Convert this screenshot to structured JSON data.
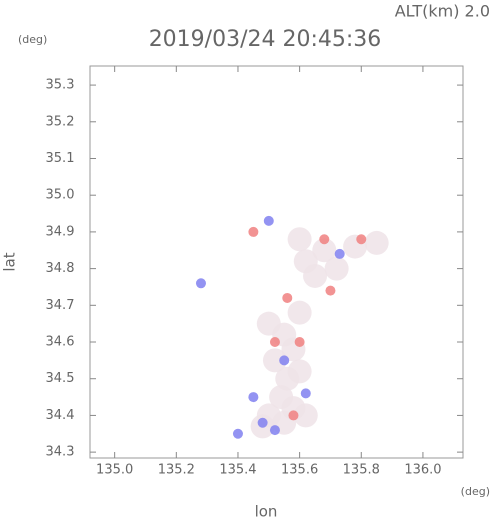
{
  "chart_data": {
    "type": "scatter",
    "title": "2019/03/24 20:45:36",
    "annotation": "ALT(km) 2.0",
    "y_unit": "(deg)",
    "x_unit": "(deg)",
    "xlabel": "lon",
    "ylabel": "lat",
    "xlim": [
      134.92,
      136.13
    ],
    "ylim": [
      34.284,
      35.352
    ],
    "xticks": [
      {
        "value": 135,
        "label": "135.0"
      },
      135.2,
      135.4,
      135.6,
      135.8,
      {
        "value": 136,
        "label": "136.0"
      }
    ],
    "yticks": [
      34.3,
      34.4,
      34.5,
      34.6,
      34.7,
      34.8,
      34.9,
      {
        "value": 35,
        "label": "35.0"
      },
      35.1,
      35.2,
      35.3
    ],
    "series": [
      {
        "color": "#efe3e7",
        "x": [
          135.5,
          135.55,
          135.58,
          135.52,
          135.56,
          135.6,
          135.54,
          135.58,
          135.5,
          135.62,
          135.55,
          135.48,
          135.6,
          135.62,
          135.68,
          135.72,
          135.65,
          135.78,
          135.85,
          135.6
        ],
        "values": [
          34.65,
          34.62,
          34.58,
          34.55,
          34.5,
          34.52,
          34.45,
          34.42,
          34.4,
          34.4,
          34.38,
          34.37,
          34.68,
          34.82,
          34.85,
          34.8,
          34.78,
          34.86,
          34.87,
          34.88
        ]
      },
      {
        "color": "#f08080",
        "x": [
          135.56,
          135.52,
          135.6,
          135.68,
          135.8,
          135.58,
          135.45,
          135.7
        ],
        "values": [
          34.72,
          34.6,
          34.6,
          34.88,
          34.88,
          34.4,
          34.9,
          34.74
        ]
      },
      {
        "color": "#8080f0",
        "x": [
          135.48,
          135.52,
          135.62,
          135.45,
          135.73,
          135.5,
          135.4,
          135.55,
          135.28
        ],
        "values": [
          34.38,
          34.36,
          34.46,
          34.45,
          34.84,
          34.93,
          34.35,
          34.55,
          34.76
        ]
      }
    ]
  }
}
